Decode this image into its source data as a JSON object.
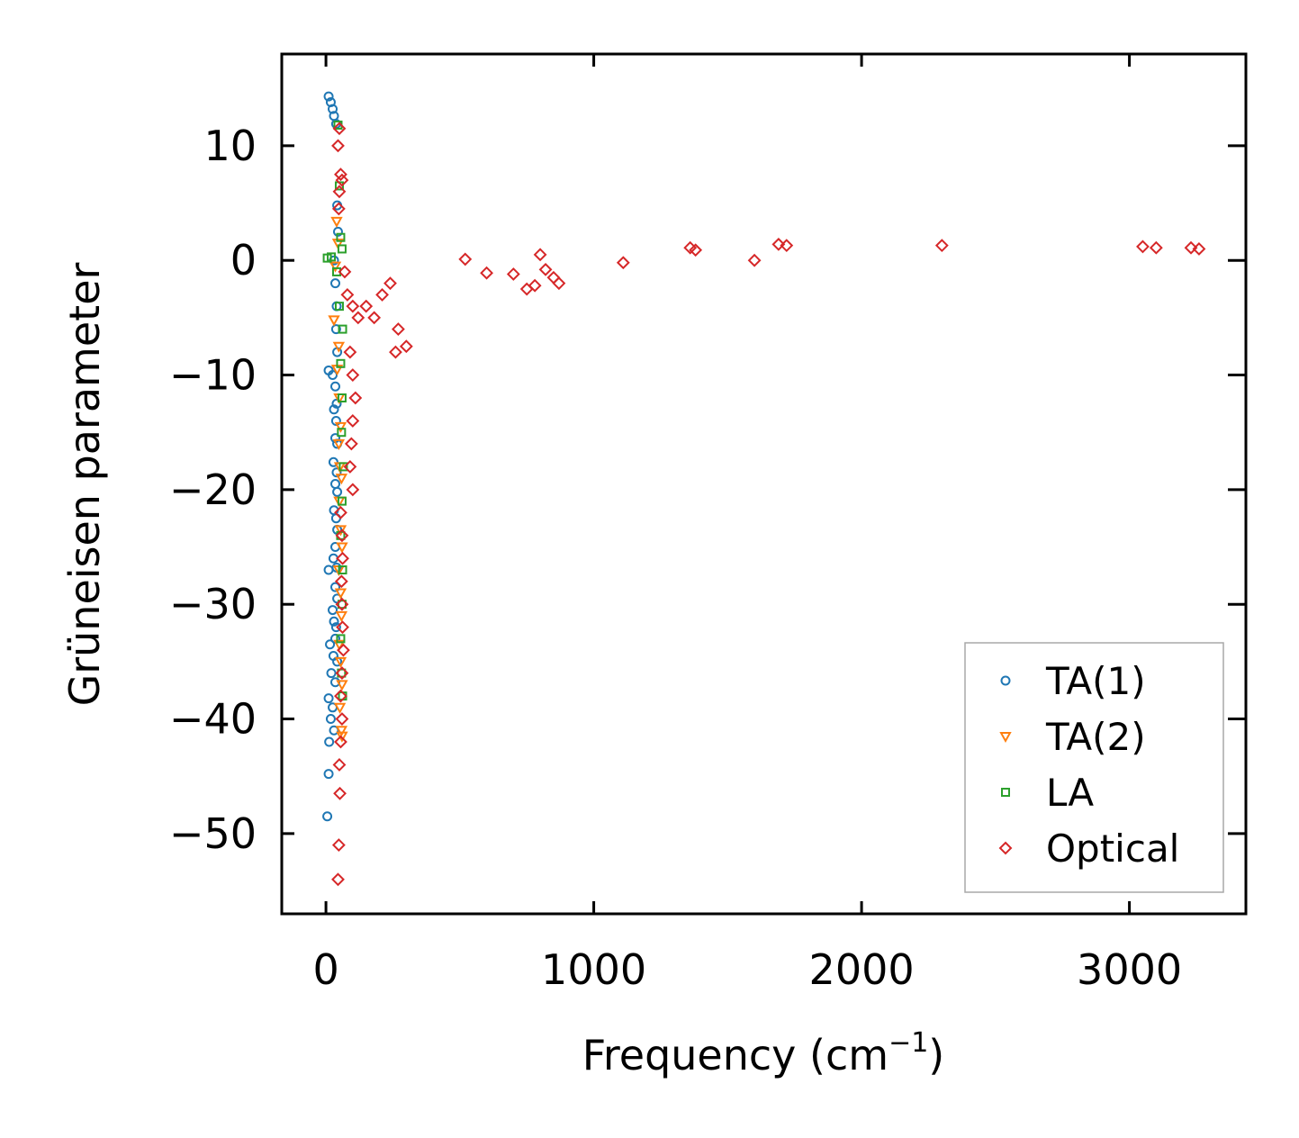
{
  "chart_data": {
    "type": "scatter",
    "title": "",
    "xlabel": "Frequency (cm",
    "xlabel_superscript": "−1",
    "xlabel_suffix": ")",
    "ylabel": "Grüneisen parameter",
    "xlim": [
      -165,
      3435
    ],
    "ylim": [
      -57,
      18
    ],
    "xticks": [
      0,
      1000,
      2000,
      3000
    ],
    "xtick_labels": [
      "0",
      "1000",
      "2000",
      "3000"
    ],
    "yticks": [
      10,
      0,
      -10,
      -20,
      -30,
      -40,
      -50
    ],
    "ytick_labels": [
      "10",
      "0",
      "−10",
      "−20",
      "−30",
      "−40",
      "−50"
    ],
    "grid": false,
    "legend_position": "bottom-right",
    "series": [
      {
        "name": "TA(1)",
        "marker": "circle",
        "color": "#1f77b4",
        "points": [
          [
            10,
            14.3
          ],
          [
            18,
            13.8
          ],
          [
            25,
            13.2
          ],
          [
            30,
            12.6
          ],
          [
            38,
            11.9
          ],
          [
            42,
            4.8
          ],
          [
            45,
            2.5
          ],
          [
            30,
            0
          ],
          [
            35,
            -2
          ],
          [
            40,
            -4
          ],
          [
            38,
            -6
          ],
          [
            42,
            -8
          ],
          [
            10,
            -9.6
          ],
          [
            25,
            -10
          ],
          [
            35,
            -11
          ],
          [
            40,
            -12.5
          ],
          [
            30,
            -13
          ],
          [
            38,
            -14
          ],
          [
            35,
            -15.5
          ],
          [
            42,
            -16
          ],
          [
            28,
            -17.6
          ],
          [
            40,
            -18.5
          ],
          [
            35,
            -19.5
          ],
          [
            42,
            -20.2
          ],
          [
            30,
            -21.8
          ],
          [
            38,
            -22.5
          ],
          [
            42,
            -23.5
          ],
          [
            35,
            -25
          ],
          [
            28,
            -26
          ],
          [
            40,
            -26.8
          ],
          [
            10,
            -27
          ],
          [
            35,
            -28.5
          ],
          [
            42,
            -29.5
          ],
          [
            25,
            -30.5
          ],
          [
            30,
            -31.5
          ],
          [
            38,
            -32
          ],
          [
            35,
            -33
          ],
          [
            15,
            -33.5
          ],
          [
            28,
            -34.5
          ],
          [
            42,
            -35
          ],
          [
            20,
            -36
          ],
          [
            35,
            -36.8
          ],
          [
            10,
            -38.2
          ],
          [
            25,
            -39
          ],
          [
            18,
            -40
          ],
          [
            30,
            -41
          ],
          [
            12,
            -42
          ],
          [
            10,
            -44.8
          ],
          [
            5,
            -48.5
          ]
        ]
      },
      {
        "name": "TA(2)",
        "marker": "triangle-down",
        "color": "#ff7f0e",
        "points": [
          [
            40,
            3.4
          ],
          [
            45,
            1.5
          ],
          [
            35,
            -0.5
          ],
          [
            30,
            -5.2
          ],
          [
            48,
            -7.5
          ],
          [
            42,
            -9.5
          ],
          [
            50,
            -12
          ],
          [
            55,
            -14.5
          ],
          [
            48,
            -16
          ],
          [
            52,
            -18
          ],
          [
            58,
            -19
          ],
          [
            50,
            -21
          ],
          [
            55,
            -23.5
          ],
          [
            60,
            -25
          ],
          [
            48,
            -27
          ],
          [
            55,
            -29
          ],
          [
            58,
            -31
          ],
          [
            50,
            -33.5
          ],
          [
            55,
            -35
          ],
          [
            60,
            -37
          ],
          [
            52,
            -39
          ],
          [
            58,
            -41
          ],
          [
            60,
            -41.5
          ]
        ]
      },
      {
        "name": "LA",
        "marker": "square",
        "color": "#2ca02c",
        "points": [
          [
            5,
            0.2
          ],
          [
            20,
            0.3
          ],
          [
            45,
            11.8
          ],
          [
            50,
            6.5
          ],
          [
            55,
            2
          ],
          [
            60,
            1
          ],
          [
            40,
            -1
          ],
          [
            50,
            -4
          ],
          [
            62,
            -6
          ],
          [
            55,
            -9
          ],
          [
            60,
            -12
          ],
          [
            58,
            -15
          ],
          [
            65,
            -18
          ],
          [
            60,
            -21
          ],
          [
            55,
            -24
          ],
          [
            62,
            -27
          ],
          [
            60,
            -30
          ],
          [
            55,
            -33
          ],
          [
            58,
            -36
          ],
          [
            62,
            -38
          ]
        ]
      },
      {
        "name": "Optical",
        "marker": "diamond",
        "color": "#d62728",
        "points": [
          [
            50,
            11.5
          ],
          [
            45,
            10
          ],
          [
            55,
            7.5
          ],
          [
            60,
            7
          ],
          [
            50,
            6
          ],
          [
            48,
            4.5
          ],
          [
            70,
            -1
          ],
          [
            80,
            -3
          ],
          [
            100,
            -4
          ],
          [
            120,
            -5
          ],
          [
            150,
            -4
          ],
          [
            180,
            -5
          ],
          [
            210,
            -3
          ],
          [
            240,
            -2
          ],
          [
            270,
            -6
          ],
          [
            300,
            -7.5
          ],
          [
            260,
            -8
          ],
          [
            90,
            -8
          ],
          [
            100,
            -10
          ],
          [
            110,
            -12
          ],
          [
            100,
            -14
          ],
          [
            95,
            -16
          ],
          [
            90,
            -18
          ],
          [
            100,
            -20
          ],
          [
            55,
            -22
          ],
          [
            60,
            -24
          ],
          [
            62,
            -26
          ],
          [
            58,
            -28
          ],
          [
            60,
            -30
          ],
          [
            62,
            -32
          ],
          [
            65,
            -34
          ],
          [
            60,
            -36
          ],
          [
            55,
            -38
          ],
          [
            60,
            -40
          ],
          [
            55,
            -42
          ],
          [
            50,
            -44
          ],
          [
            52,
            -46.5
          ],
          [
            48,
            -51
          ],
          [
            45,
            -54
          ],
          [
            520,
            0.1
          ],
          [
            600,
            -1.1
          ],
          [
            700,
            -1.2
          ],
          [
            750,
            -2.5
          ],
          [
            780,
            -2.2
          ],
          [
            800,
            0.5
          ],
          [
            820,
            -0.8
          ],
          [
            850,
            -1.5
          ],
          [
            870,
            -2
          ],
          [
            1110,
            -0.2
          ],
          [
            1360,
            1.1
          ],
          [
            1380,
            0.9
          ],
          [
            1600,
            0
          ],
          [
            1690,
            1.4
          ],
          [
            1720,
            1.3
          ],
          [
            2300,
            1.3
          ],
          [
            3050,
            1.2
          ],
          [
            3100,
            1.1
          ],
          [
            3230,
            1.1
          ],
          [
            3260,
            1.0
          ]
        ]
      }
    ]
  }
}
